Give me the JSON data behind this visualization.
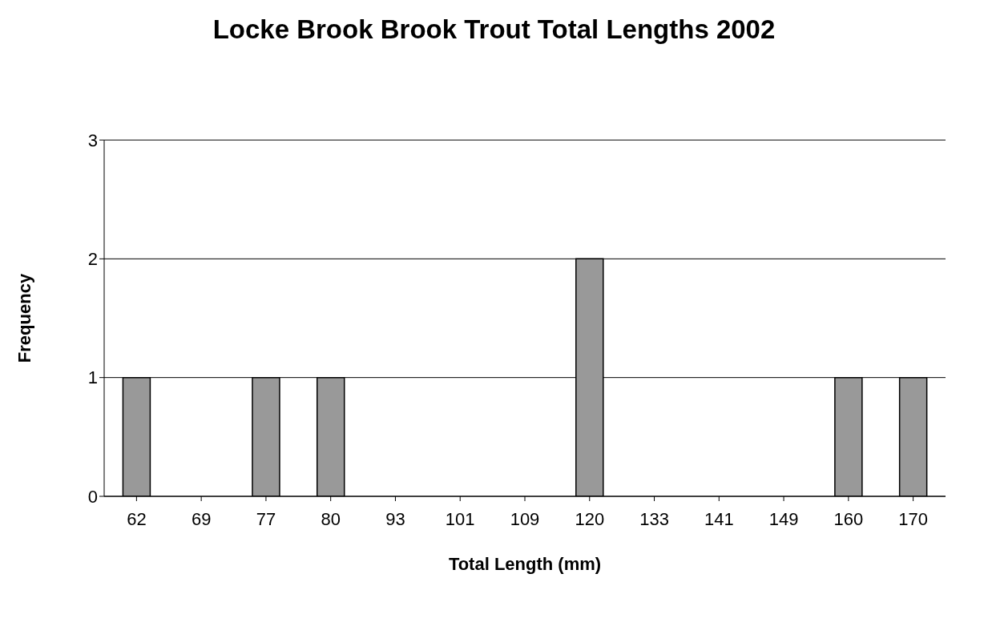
{
  "chart_data": {
    "type": "bar",
    "title": "Locke Brook  Brook Trout Total Lengths 2002",
    "xlabel": "Total Length (mm)",
    "ylabel": "Frequency",
    "categories": [
      "62",
      "69",
      "77",
      "80",
      "93",
      "101",
      "109",
      "120",
      "133",
      "141",
      "149",
      "160",
      "170"
    ],
    "values": [
      1,
      0,
      1,
      1,
      0,
      0,
      0,
      2,
      0,
      0,
      0,
      1,
      1
    ],
    "color": "#999999",
    "ylim": [
      0,
      3
    ],
    "yticks": [
      0,
      1,
      2,
      3
    ],
    "grid": "y",
    "legend": false
  }
}
